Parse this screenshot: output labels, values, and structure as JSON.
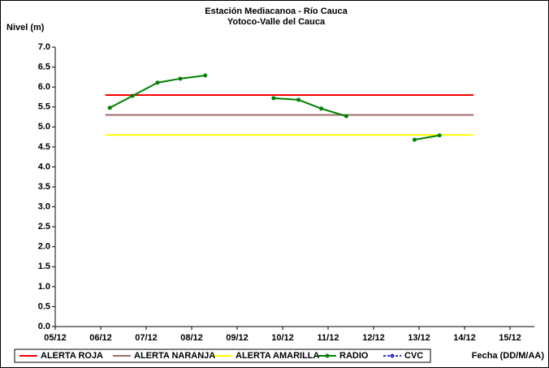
{
  "chart_data": {
    "type": "line",
    "title": "Estación Mediacanoa - Río Cauca",
    "subtitle": "Yotoco-Valle del Cauca",
    "y_label": "Nivel (m)",
    "x_label": "Fecha (DD/M/AA)",
    "xlim": [
      5,
      15
    ],
    "xticks": [
      {
        "value": 5,
        "label": "05/12"
      },
      {
        "value": 6,
        "label": "06/12"
      },
      {
        "value": 7,
        "label": "07/12"
      },
      {
        "value": 8,
        "label": "08/12"
      },
      {
        "value": 9,
        "label": "09/12"
      },
      {
        "value": 10,
        "label": "10/12"
      },
      {
        "value": 11,
        "label": "11/12"
      },
      {
        "value": 12,
        "label": "12/12"
      },
      {
        "value": 13,
        "label": "13/12"
      },
      {
        "value": 14,
        "label": "14/12"
      },
      {
        "value": 15,
        "label": "15/12"
      }
    ],
    "ylim": [
      0,
      7
    ],
    "yticks": [
      {
        "value": 0,
        "label": "0.0"
      },
      0.5,
      {
        "value": 1,
        "label": "1.0"
      },
      1.5,
      {
        "value": 2,
        "label": "2.0"
      },
      2.5,
      {
        "value": 3,
        "label": "3.0"
      },
      3.5,
      {
        "value": 4,
        "label": "4.0"
      },
      4.5,
      {
        "value": 5,
        "label": "5.0"
      },
      5.5,
      {
        "value": 6,
        "label": "6.0"
      },
      6.5,
      {
        "value": 7,
        "label": "7.0"
      }
    ],
    "legend": "bottom",
    "series": [
      {
        "name": "ALERTA ROJA",
        "color": "#ff0000",
        "x": [
          6.1,
          14.2
        ],
        "values": [
          5.8,
          5.8
        ]
      },
      {
        "name": "ALERTA NARANJA",
        "color": "#9c6b6b",
        "x": [
          6.1,
          14.2
        ],
        "values": [
          5.3,
          5.3
        ]
      },
      {
        "name": "ALERTA AMARILLA",
        "color": "#ffff00",
        "x": [
          6.1,
          14.2
        ],
        "values": [
          4.8,
          4.8
        ]
      },
      {
        "name": "RADIO",
        "color": "#008000",
        "markers": true,
        "x": [
          6.2,
          6.7,
          7.25,
          7.75,
          8.3,
          9,
          9.8,
          10.35,
          10.85,
          11.4,
          12,
          12.9,
          13.45
        ],
        "values": [
          5.48,
          5.78,
          6.11,
          6.21,
          6.29,
          null,
          5.72,
          5.68,
          5.46,
          5.27,
          null,
          4.68,
          4.79
        ]
      },
      {
        "name": "CVC",
        "color": "#3333cc",
        "markers": true,
        "dashed": true,
        "x": [],
        "values": []
      }
    ]
  }
}
